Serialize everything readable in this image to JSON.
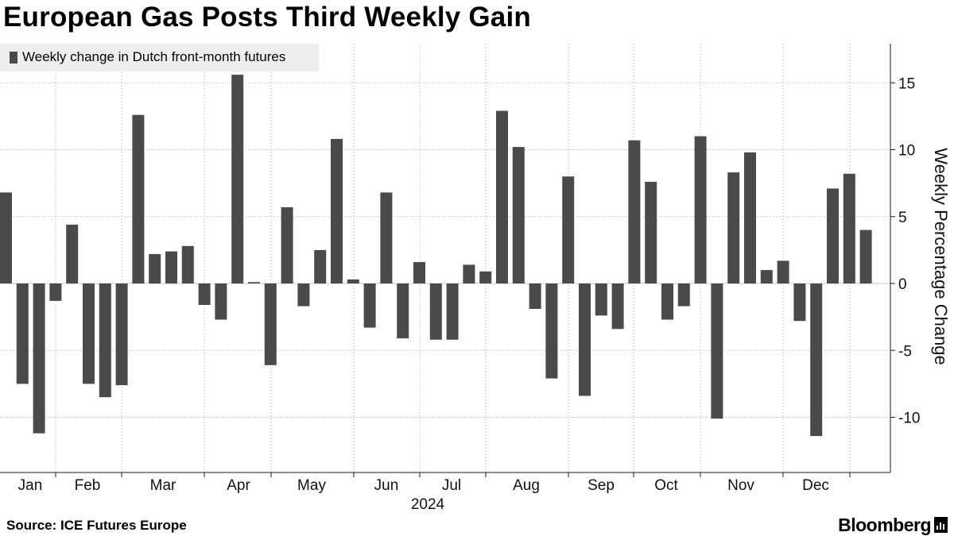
{
  "title": "European Gas Posts Third Weekly Gain",
  "legend": {
    "label": "Weekly change in Dutch front-month futures",
    "color": "#4a4a4a"
  },
  "source": "Source: ICE Futures Europe",
  "brand": {
    "name": "Bloomberg",
    "icon": "bloomberg-terminal-icon"
  },
  "colors": {
    "bar": "#4a4a4a",
    "grid": "#c9c9c9",
    "axis": "#1a1a1a",
    "background": "#ffffff"
  },
  "chart_data": {
    "type": "bar",
    "title": "European Gas Posts Third Weekly Gain",
    "series": [
      {
        "name": "Weekly change in Dutch front-month futures",
        "values": [
          6.8,
          -7.5,
          -11.2,
          -1.3,
          4.4,
          -7.5,
          -8.5,
          -7.6,
          12.6,
          2.2,
          2.4,
          2.8,
          -1.6,
          -2.7,
          15.6,
          0.1,
          -6.1,
          5.7,
          -1.7,
          2.5,
          10.8,
          0.3,
          -3.3,
          6.8,
          -4.1,
          1.6,
          -4.2,
          -4.2,
          1.4,
          0.9,
          12.9,
          10.2,
          -1.9,
          -7.1,
          8.0,
          -8.4,
          -2.4,
          -3.4,
          10.7,
          7.6,
          -2.7,
          -1.7,
          11.0,
          -10.1,
          8.3,
          9.8,
          1.0,
          1.7,
          -2.8,
          -11.4,
          7.1,
          8.2,
          4.0
        ]
      }
    ],
    "xlabel": "2024",
    "months": [
      "Jan",
      "Feb",
      "Mar",
      "Apr",
      "May",
      "Jun",
      "Jul",
      "Aug",
      "Sep",
      "Oct",
      "Nov",
      "Dec"
    ],
    "ylabel": "Weekly Percentage Change",
    "yticks": [
      15,
      10,
      5,
      0,
      -5,
      -10
    ],
    "ylim": [
      -14,
      18
    ],
    "grid": true,
    "legend_position": "top-left"
  }
}
